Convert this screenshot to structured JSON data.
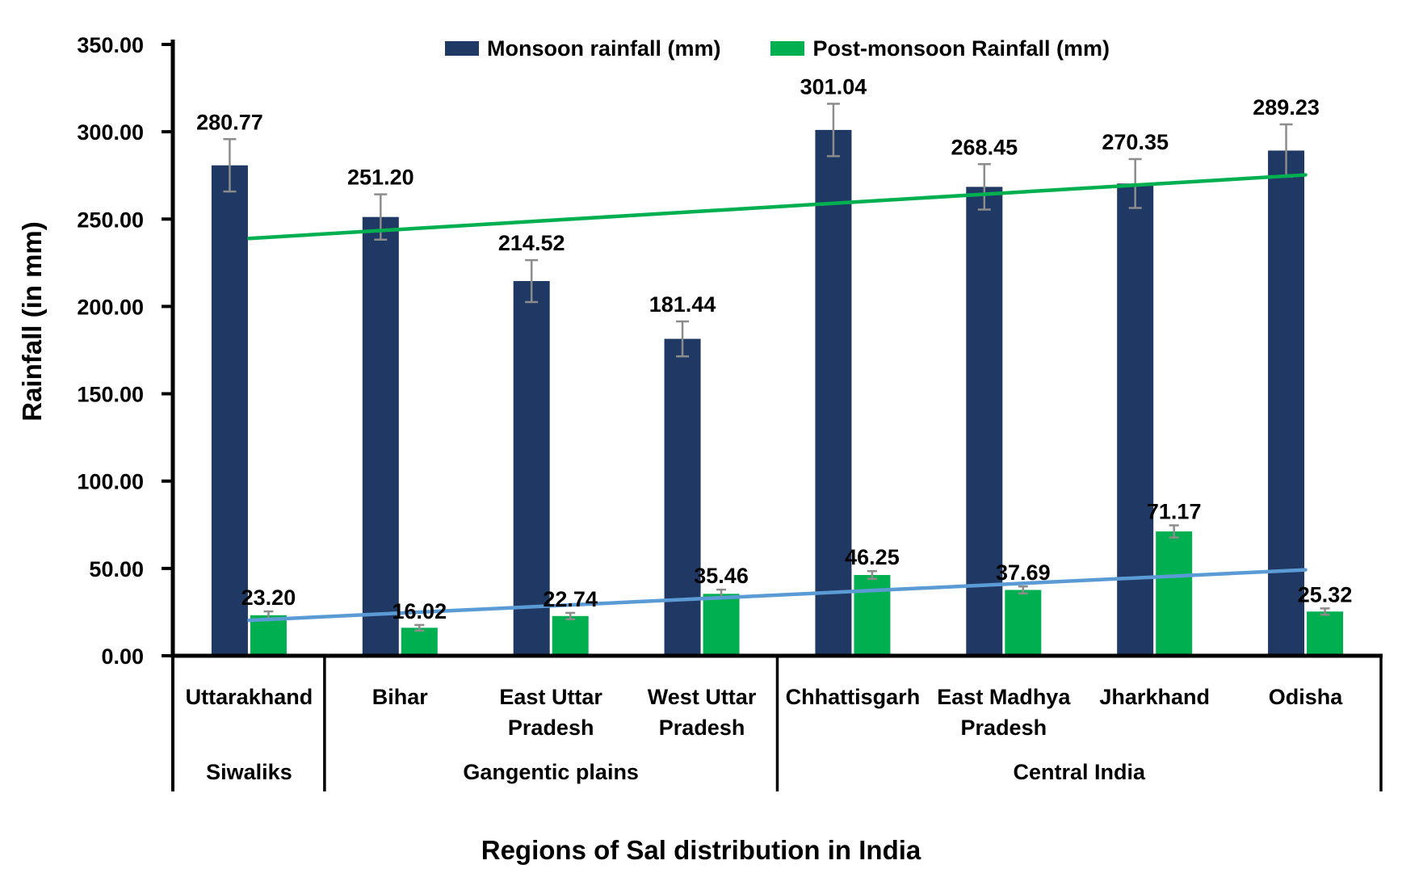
{
  "chart_data": {
    "type": "bar",
    "xlabel": "Regions of Sal distribution in India",
    "ylabel": "Rainfall (in mm)",
    "ylim": [
      0,
      350
    ],
    "ytick_values": [
      0,
      50,
      100,
      150,
      200,
      250,
      300,
      350
    ],
    "ytick_decimals": 2,
    "value_label_decimals": 2,
    "grid": "off",
    "legend_position": "top-center",
    "categories": [
      "Uttarakhand",
      "Bihar",
      "East Uttar Pradesh",
      "West Uttar Pradesh",
      "Chhattisgarh",
      "East Madhya Pradesh",
      "Jharkhand",
      "Odisha"
    ],
    "category_label_lines": [
      [
        "Uttarakhand"
      ],
      [
        "Bihar"
      ],
      [
        "East Uttar",
        "Pradesh"
      ],
      [
        "West Uttar",
        "Pradesh"
      ],
      [
        "Chhattisgarh"
      ],
      [
        "East Madhya",
        "Pradesh"
      ],
      [
        "Jharkhand"
      ],
      [
        "Odisha"
      ]
    ],
    "groups": [
      {
        "label": "Siwaliks",
        "span": 1
      },
      {
        "label": "Gangentic plains",
        "span": 3
      },
      {
        "label": "Central India",
        "span": 4
      }
    ],
    "series": [
      {
        "name": "Monsoon rainfall (mm)",
        "color": "#1F3864",
        "values": [
          280.77,
          251.2,
          214.52,
          181.44,
          301.04,
          268.45,
          270.35,
          289.23
        ],
        "errors": [
          15,
          13,
          12,
          10,
          15,
          13,
          14,
          15
        ]
      },
      {
        "name": "Post-monsoon Rainfall (mm)",
        "color": "#00B050",
        "values": [
          23.2,
          16.02,
          22.74,
          35.46,
          46.25,
          37.69,
          71.17,
          25.32
        ],
        "errors": [
          2.2,
          1.6,
          1.8,
          2.4,
          2.2,
          2.0,
          3.5,
          1.8
        ]
      }
    ],
    "trendlines": [
      {
        "series": "Monsoon rainfall (mm)",
        "color": "#00B050",
        "start_value": 238.9,
        "end_value": 275.3
      },
      {
        "series": "Post-monsoon Rainfall (mm)",
        "color": "#5B9BD5",
        "start_value": 20.3,
        "end_value": 49.2
      }
    ],
    "error_bar_color": "#8C8C8C"
  }
}
